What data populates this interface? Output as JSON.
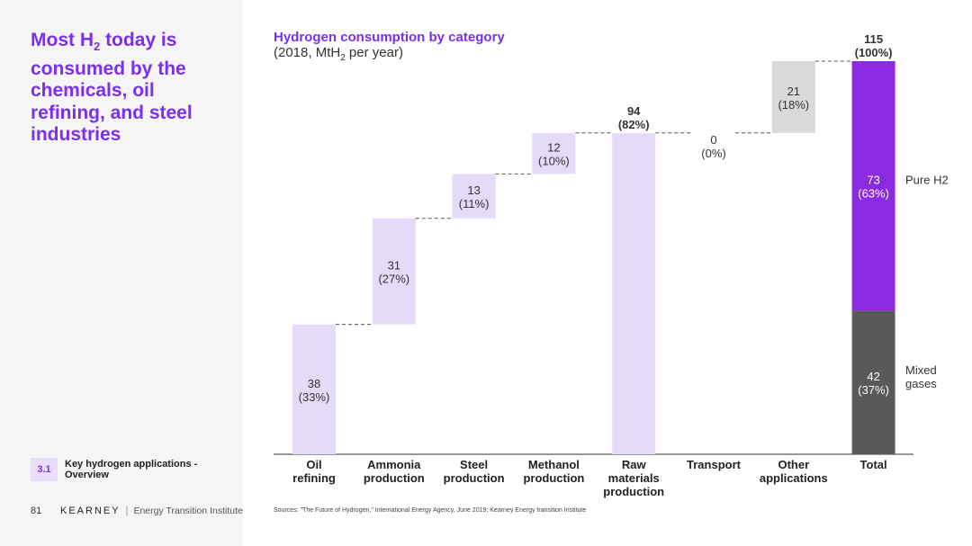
{
  "headline": {
    "line1_pre": "Most H",
    "line1_sub": "2",
    "line1_post": " today is",
    "rest": "consumed by the chemicals, oil refining, and steel industries"
  },
  "section": {
    "number": "3.1",
    "label": "Key hydrogen applications - Overview"
  },
  "footer": {
    "page": "81",
    "brand": "KEARNEY",
    "institute": "Energy Transition Institute"
  },
  "source": "Sources: \"The Future of Hydrogen,\" International Energy Agency, June 2019; Kearney Energy transition Institute",
  "colors": {
    "accent": "#7b2ff0",
    "light_bar": "#e6dafb",
    "pure_h2": "#8a2be2",
    "mixed_gases": "#595959",
    "other": "#d9d9d9"
  },
  "chart_data": {
    "type": "bar",
    "subtype": "waterfall",
    "title": "Hydrogen consumption by category",
    "subtitle_pre": "(2018, MtH",
    "subtitle_sub": "2",
    "subtitle_post": " per year)",
    "ylim": [
      0,
      115
    ],
    "categories": [
      {
        "label": [
          "Oil",
          "refining"
        ],
        "value": 38,
        "pct": "(33%)",
        "kind": "step",
        "color": "light"
      },
      {
        "label": [
          "Ammonia",
          "production"
        ],
        "value": 31,
        "pct": "(27%)",
        "kind": "step",
        "color": "light"
      },
      {
        "label": [
          "Steel",
          "production"
        ],
        "value": 13,
        "pct": "(11%)",
        "kind": "step",
        "color": "light"
      },
      {
        "label": [
          "Methanol",
          "production"
        ],
        "value": 12,
        "pct": "(10%)",
        "kind": "step",
        "color": "light"
      },
      {
        "label": [
          "Raw",
          "materials",
          "production"
        ],
        "value": 94,
        "pct": "(82%)",
        "kind": "subtotal",
        "color": "light"
      },
      {
        "label": [
          "Transport"
        ],
        "value": 0,
        "pct": "(0%)",
        "kind": "step",
        "color": "light"
      },
      {
        "label": [
          "Other",
          "applications"
        ],
        "value": 21,
        "pct": "(18%)",
        "kind": "step",
        "color": "other"
      },
      {
        "label": [
          "Total"
        ],
        "value": 115,
        "pct": "(100%)",
        "kind": "total",
        "color": "stack"
      }
    ],
    "total_stack": [
      {
        "name": "Mixed gases",
        "value": 42,
        "pct": "(37%)"
      },
      {
        "name": "Pure H2",
        "value": 73,
        "pct": "(63%)"
      }
    ]
  }
}
